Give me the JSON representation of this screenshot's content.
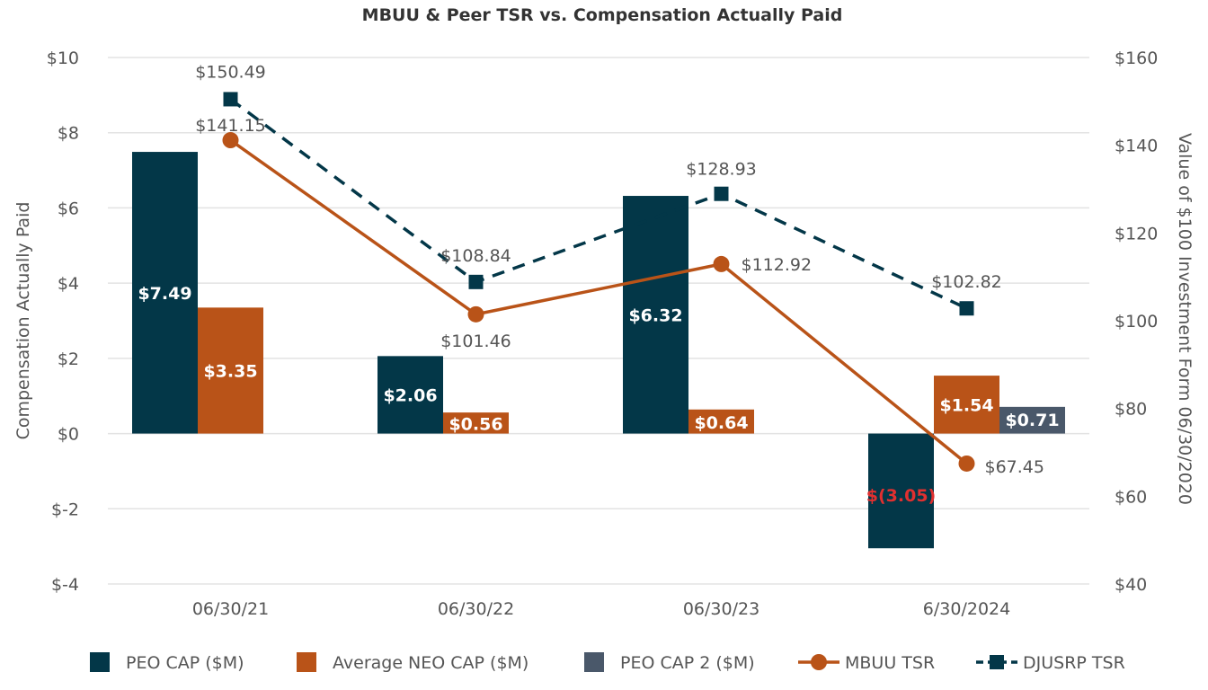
{
  "chart_data": {
    "type": "bar",
    "title": "MBUU & Peer TSR vs. Compensation Actually Paid",
    "categories": [
      "06/30/21",
      "06/30/22",
      "06/30/23",
      "6/30/2024"
    ],
    "y_left": {
      "label": "Compensation Actually Paid",
      "range": [
        -4,
        10
      ],
      "ticks": [
        10,
        8,
        6,
        4,
        2,
        0,
        -2,
        -4
      ],
      "tick_labels": [
        "$10",
        "$8",
        "$6",
        "$4",
        "$2",
        "$0",
        "$-2",
        "$-4"
      ]
    },
    "y_right": {
      "label": "Value of $100 Investment Form 06/30/2020",
      "range": [
        40,
        160
      ],
      "ticks": [
        160,
        140,
        120,
        100,
        80,
        60,
        40
      ],
      "tick_labels": [
        "$160",
        "$140",
        "$120",
        "$100",
        "$80",
        "$60",
        "$40"
      ]
    },
    "grid": true,
    "legend_position": "bottom",
    "bar_series": [
      {
        "name": "PEO CAP ($M)",
        "color": "#033748",
        "values": [
          7.49,
          2.06,
          6.32,
          -3.05
        ],
        "labels": [
          "$7.49",
          "$2.06",
          "$6.32",
          "$(3.05)"
        ],
        "label_colors": [
          "#ffffff",
          "#ffffff",
          "#ffffff",
          "#e03030"
        ]
      },
      {
        "name": "Average NEO CAP ($M)",
        "color": "#b95318",
        "values": [
          3.35,
          0.56,
          0.64,
          1.54
        ],
        "labels": [
          "$3.35",
          "$0.56",
          "$0.64",
          "$1.54"
        ],
        "label_colors": [
          "#ffffff",
          "#ffffff",
          "#ffffff",
          "#ffffff"
        ]
      },
      {
        "name": "PEO CAP 2 ($M)",
        "color": "#4a586a",
        "values": [
          0,
          0,
          0,
          0.71
        ],
        "labels": [
          "",
          "",
          "",
          "$0.71"
        ],
        "label_colors": [
          "#ffffff",
          "#ffffff",
          "#ffffff",
          "#ffffff"
        ]
      }
    ],
    "line_series": [
      {
        "name": "MBUU TSR",
        "color": "#b95318",
        "dashed": false,
        "marker": "circle",
        "values": [
          141.15,
          101.46,
          112.92,
          67.45
        ],
        "labels": [
          "$141.15",
          "$101.46",
          "$112.92",
          "$67.45"
        ]
      },
      {
        "name": "DJUSRP TSR",
        "color": "#033748",
        "dashed": true,
        "marker": "square",
        "values": [
          150.49,
          108.84,
          128.93,
          102.82
        ],
        "labels": [
          "$150.49",
          "$108.84",
          "$128.93",
          "$102.82"
        ]
      }
    ]
  }
}
